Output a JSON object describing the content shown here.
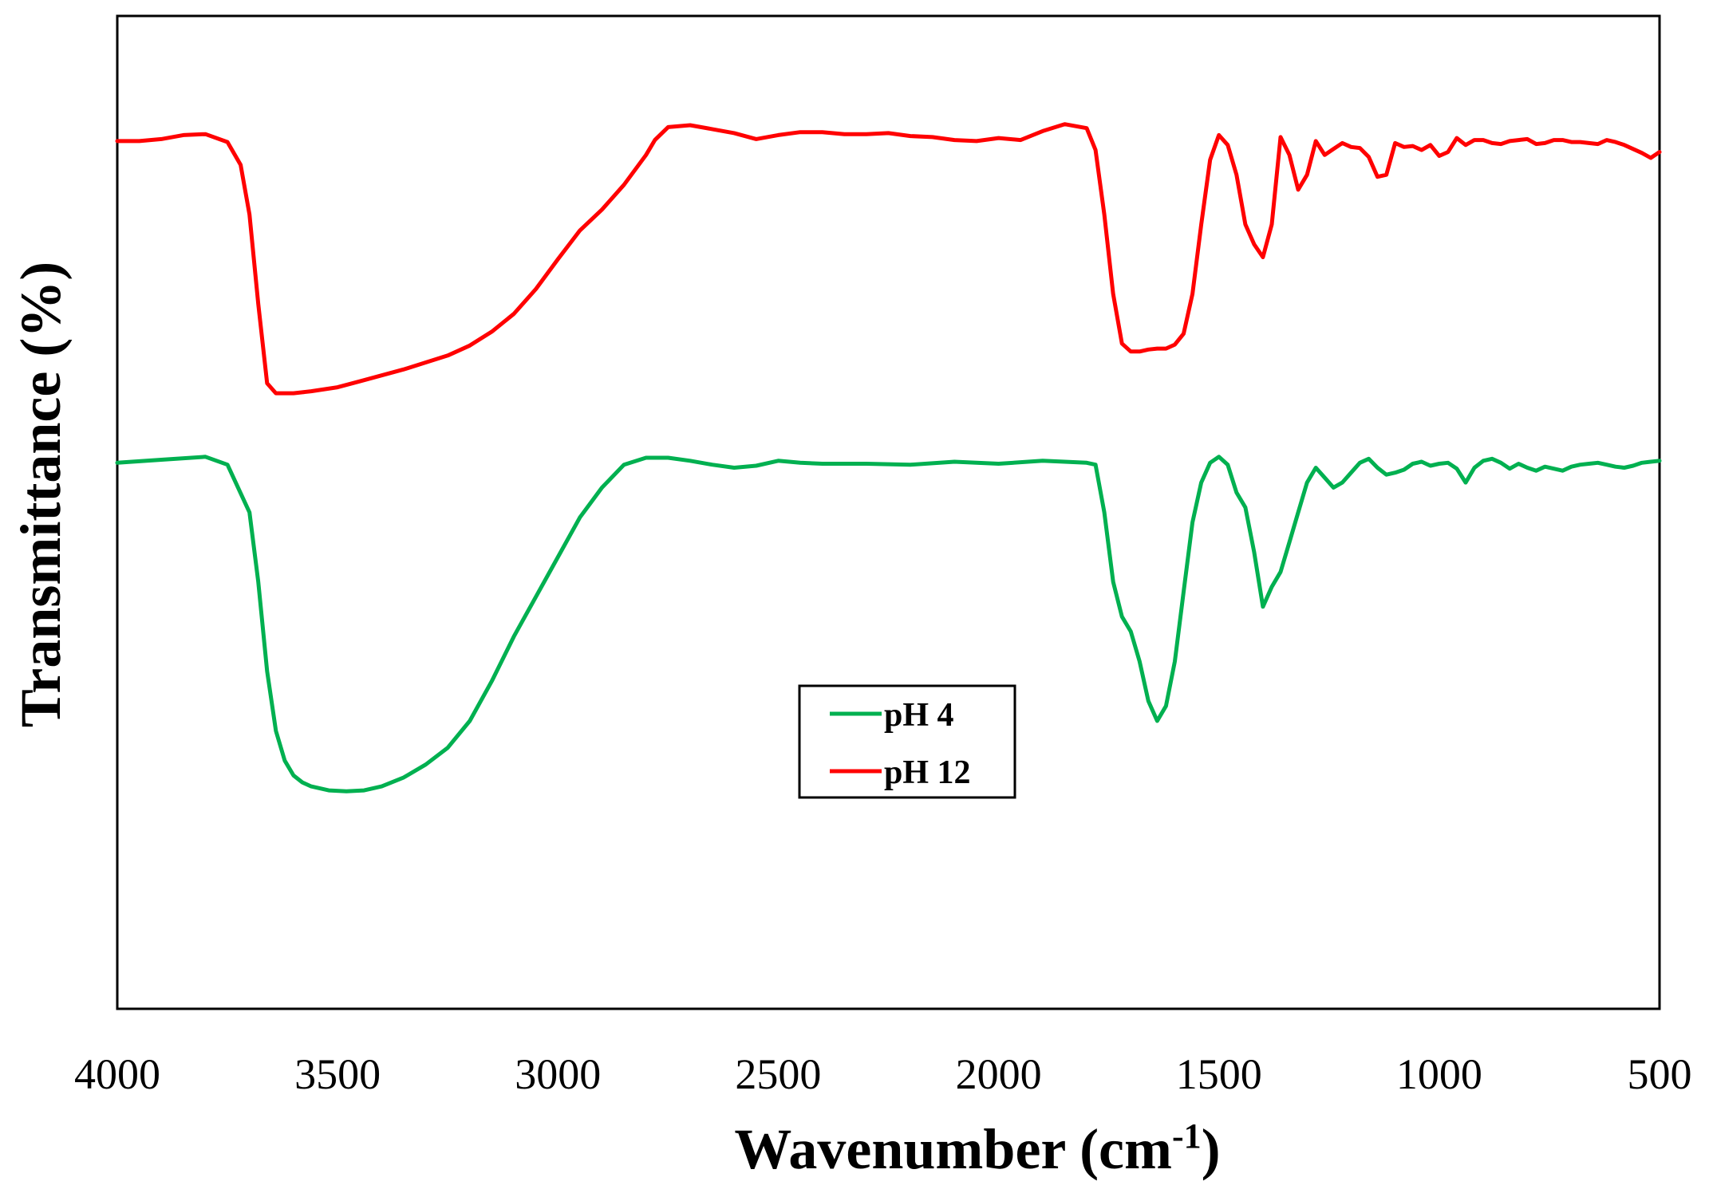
{
  "chart_data": {
    "type": "line",
    "title": "",
    "xlabel": "Wavenumber (cm",
    "xlabel_sup": "-1",
    "xlabel_close": ")",
    "ylabel": "Transmittance (%)",
    "xlim": [
      4000,
      500
    ],
    "ylim": [
      0,
      100
    ],
    "x_ticks": [
      4000,
      3500,
      3000,
      2500,
      2000,
      1500,
      1000,
      500
    ],
    "x_tick_labels": [
      "4000",
      "3500",
      "3000",
      "2500",
      "2000",
      "1500",
      "1000",
      "500"
    ],
    "y_ticks_shown": false,
    "grid": false,
    "legend_position": "center",
    "series": [
      {
        "name": "pH 4",
        "color": "#00b050",
        "x": [
          4000,
          3900,
          3800,
          3750,
          3700,
          3680,
          3660,
          3640,
          3620,
          3600,
          3580,
          3560,
          3520,
          3480,
          3440,
          3400,
          3350,
          3300,
          3250,
          3200,
          3150,
          3100,
          3050,
          3000,
          2950,
          2900,
          2850,
          2800,
          2750,
          2700,
          2650,
          2600,
          2550,
          2500,
          2450,
          2400,
          2300,
          2200,
          2100,
          2000,
          1900,
          1800,
          1780,
          1760,
          1740,
          1720,
          1700,
          1680,
          1660,
          1640,
          1620,
          1600,
          1580,
          1560,
          1540,
          1520,
          1500,
          1480,
          1460,
          1440,
          1420,
          1400,
          1380,
          1360,
          1340,
          1320,
          1300,
          1280,
          1260,
          1240,
          1220,
          1200,
          1180,
          1160,
          1140,
          1120,
          1100,
          1080,
          1060,
          1040,
          1020,
          1000,
          980,
          960,
          940,
          920,
          900,
          880,
          860,
          840,
          820,
          800,
          780,
          760,
          740,
          720,
          700,
          680,
          660,
          640,
          620,
          600,
          580,
          560,
          540,
          520,
          500
        ],
        "y": [
          55.0,
          55.3,
          55.6,
          54.8,
          50.0,
          43.0,
          34.0,
          28.0,
          25.0,
          23.5,
          22.8,
          22.4,
          22.0,
          21.9,
          22.0,
          22.4,
          23.3,
          24.6,
          26.3,
          29.0,
          33.0,
          37.5,
          41.5,
          45.5,
          49.5,
          52.5,
          54.8,
          55.5,
          55.5,
          55.2,
          54.8,
          54.5,
          54.7,
          55.2,
          55.0,
          54.9,
          54.9,
          54.8,
          55.1,
          54.9,
          55.2,
          55.0,
          54.8,
          50.0,
          43.0,
          39.5,
          38.0,
          35.0,
          31.0,
          29.0,
          30.5,
          35.0,
          42.0,
          49.0,
          53.0,
          55.0,
          55.6,
          54.8,
          52.0,
          50.5,
          46.0,
          40.5,
          42.5,
          44.0,
          47.0,
          50.0,
          53.0,
          54.5,
          53.5,
          52.5,
          53.0,
          54.0,
          55.0,
          55.4,
          54.5,
          53.8,
          54.0,
          54.3,
          54.9,
          55.1,
          54.7,
          54.9,
          55.0,
          54.4,
          53.0,
          54.5,
          55.2,
          55.4,
          55.0,
          54.4,
          54.9,
          54.5,
          54.2,
          54.6,
          54.4,
          54.2,
          54.6,
          54.8,
          54.9,
          55.0,
          54.8,
          54.6,
          54.5,
          54.7,
          55.0,
          55.1,
          55.2
        ]
      },
      {
        "name": "pH 12",
        "color": "#ff0000",
        "x": [
          4000,
          3950,
          3900,
          3850,
          3800,
          3750,
          3720,
          3700,
          3680,
          3660,
          3640,
          3620,
          3600,
          3580,
          3560,
          3500,
          3450,
          3400,
          3350,
          3300,
          3250,
          3200,
          3150,
          3100,
          3050,
          3000,
          2950,
          2900,
          2850,
          2800,
          2780,
          2750,
          2700,
          2650,
          2600,
          2550,
          2500,
          2450,
          2400,
          2350,
          2300,
          2250,
          2200,
          2150,
          2100,
          2050,
          2000,
          1950,
          1900,
          1850,
          1800,
          1780,
          1760,
          1740,
          1720,
          1700,
          1680,
          1660,
          1640,
          1620,
          1600,
          1580,
          1560,
          1540,
          1520,
          1500,
          1480,
          1460,
          1440,
          1420,
          1400,
          1380,
          1360,
          1340,
          1320,
          1300,
          1280,
          1260,
          1240,
          1220,
          1200,
          1180,
          1160,
          1140,
          1120,
          1100,
          1080,
          1060,
          1040,
          1020,
          1000,
          980,
          960,
          940,
          920,
          900,
          880,
          860,
          840,
          820,
          800,
          780,
          760,
          740,
          720,
          700,
          680,
          660,
          640,
          620,
          600,
          580,
          560,
          540,
          520,
          500
        ],
        "y": [
          87.4,
          87.4,
          87.6,
          88.0,
          88.1,
          87.3,
          85.0,
          80.0,
          71.0,
          63.0,
          62.0,
          62.0,
          62.0,
          62.1,
          62.2,
          62.6,
          63.2,
          63.8,
          64.4,
          65.1,
          65.8,
          66.8,
          68.2,
          70.0,
          72.5,
          75.5,
          78.4,
          80.5,
          83.0,
          86.0,
          87.5,
          88.8,
          89.0,
          88.6,
          88.2,
          87.6,
          88.0,
          88.3,
          88.3,
          88.1,
          88.1,
          88.2,
          87.9,
          87.8,
          87.5,
          87.4,
          87.7,
          87.5,
          88.4,
          89.1,
          88.7,
          86.5,
          80.0,
          72.0,
          67.0,
          66.2,
          66.2,
          66.4,
          66.5,
          66.5,
          66.9,
          68.0,
          72.0,
          79.0,
          85.5,
          88.0,
          87.0,
          84.0,
          79.0,
          77.0,
          75.7,
          79.0,
          87.8,
          86.0,
          82.5,
          84.0,
          87.4,
          86.0,
          86.6,
          87.2,
          86.8,
          86.7,
          85.8,
          83.8,
          84.0,
          87.2,
          86.8,
          86.9,
          86.5,
          87.0,
          85.9,
          86.3,
          87.7,
          87.0,
          87.5,
          87.5,
          87.2,
          87.1,
          87.4,
          87.5,
          87.6,
          87.1,
          87.2,
          87.5,
          87.5,
          87.3,
          87.3,
          87.2,
          87.1,
          87.5,
          87.3,
          87.0,
          86.6,
          86.2,
          85.7,
          86.3
        ]
      }
    ],
    "legend": [
      {
        "label": "pH 4",
        "color": "#00b050"
      },
      {
        "label": "pH 12",
        "color": "#ff0000"
      }
    ]
  }
}
